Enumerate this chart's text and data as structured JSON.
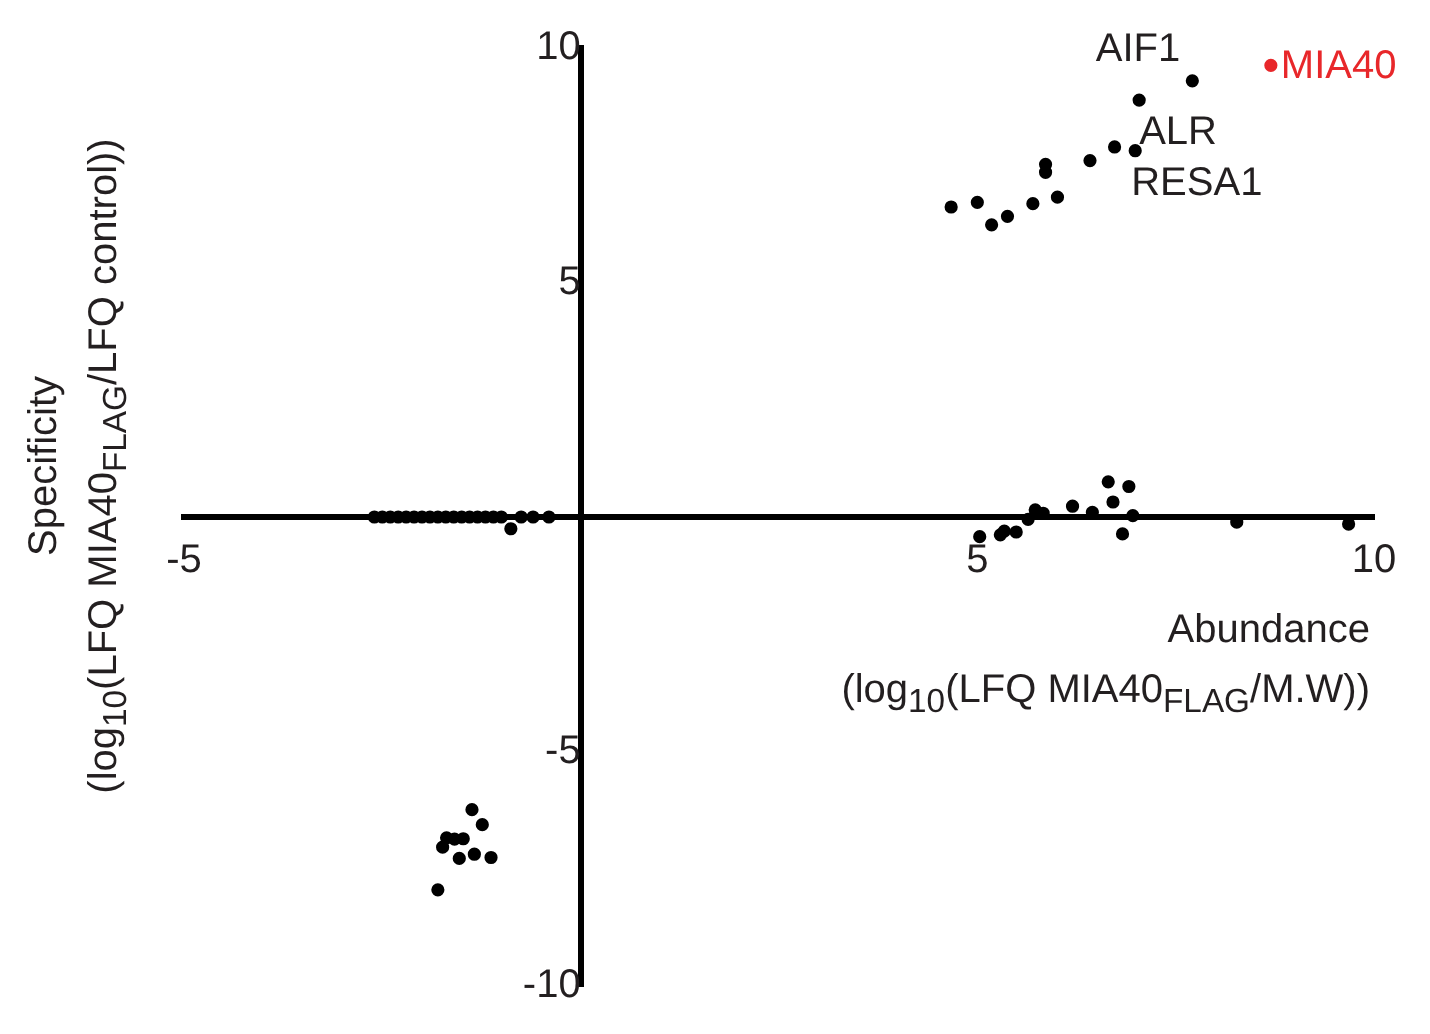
{
  "chart_data": {
    "type": "scatter",
    "xlabel": "Abundance\n(log$_{10}$(LFQ MIA40$_{FLAG}$/M.W))",
    "ylabel": "Specificity\n(log$_{10}$(LFQ MIA40$_{FLAG}$/LFQ control))",
    "xlim": [
      -5,
      10
    ],
    "ylim": [
      -10,
      10
    ],
    "xticks": [
      -5,
      5,
      10
    ],
    "yticks": [
      -10,
      -5,
      5,
      10
    ],
    "grid": false,
    "legend": false,
    "marker": "circle",
    "series": [
      {
        "color": "#000000",
        "x": [
          7.71,
          7.04,
          6.73,
          6.99,
          6.42,
          5.86,
          5.86,
          6.01,
          5.7,
          5.38,
          5.18,
          5.0,
          4.67,
          6.65,
          6.91,
          6.71,
          6.2,
          6.45,
          5.73,
          5.83,
          5.64,
          6.96,
          6.83,
          5.49,
          5.34,
          5.29,
          5.03,
          8.27,
          9.68,
          -2.6,
          -2.5,
          -2.4,
          -2.3,
          -2.2,
          -2.1,
          -2.0,
          -1.9,
          -1.8,
          -1.7,
          -1.6,
          -1.5,
          -1.4,
          -1.3,
          -1.2,
          -1.1,
          -1.0,
          -0.88,
          -0.75,
          -0.6,
          -0.4,
          -1.37,
          -1.24,
          -1.69,
          -1.59,
          -1.48,
          -1.74,
          -1.53,
          -1.34,
          -1.13,
          -1.8
        ],
        "values": [
          9.3,
          8.89,
          7.89,
          7.81,
          7.6,
          7.52,
          7.35,
          6.82,
          6.68,
          6.41,
          6.23,
          6.71,
          6.61,
          0.75,
          0.65,
          0.32,
          0.23,
          0.1,
          0.15,
          0.08,
          -0.05,
          0.03,
          -0.36,
          -0.32,
          -0.3,
          -0.38,
          -0.42,
          -0.11,
          -0.15,
          0,
          0,
          0,
          0,
          0,
          0,
          0,
          0,
          0,
          0,
          0,
          0,
          0,
          0,
          0,
          0,
          0,
          -0.25,
          0,
          0,
          0,
          -6.24,
          -6.56,
          -6.84,
          -6.87,
          -6.86,
          -7.04,
          -7.28,
          -7.19,
          -7.26,
          -7.95
        ]
      },
      {
        "name": "MIA40",
        "color": "#e8272a",
        "x": [
          8.7
        ],
        "values": [
          9.63
        ]
      }
    ],
    "annotations": [
      {
        "text": "AIF1",
        "x": 7.71,
        "y": 9.3
      },
      {
        "text": "ALR",
        "x": 7.04,
        "y": 8.89
      },
      {
        "text": "RESA1",
        "x": 6.99,
        "y": 7.81
      }
    ]
  }
}
